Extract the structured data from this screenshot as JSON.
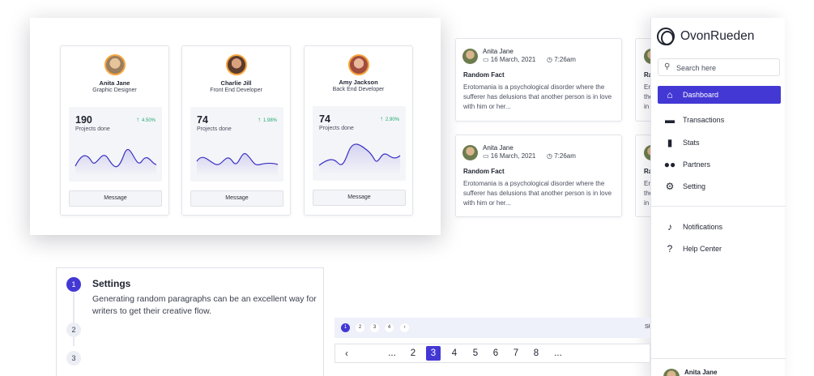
{
  "profiles": [
    {
      "name": "Anita Jane",
      "role": "Graphic Designer",
      "count": "190",
      "count_label": "Projects done",
      "pct": "4.50%",
      "button": "Message",
      "avatar_color": "#c9a27a"
    },
    {
      "name": "Charlie Jill",
      "role": "Front End Developer",
      "count": "74",
      "count_label": "Projects done",
      "pct": "1.98%",
      "button": "Message",
      "avatar_color": "#7a4b3a"
    },
    {
      "name": "Amy Jackson",
      "role": "Back End Developer",
      "count": "74",
      "count_label": "Projects done",
      "pct": "2.90%",
      "button": "Message",
      "avatar_color": "#b7574a"
    }
  ],
  "feed": [
    {
      "author": "Anita Jane",
      "date": "16 March, 2021",
      "time": "7:26am",
      "title": "Random Fact",
      "body": "Erotomania is a psychological disorder where the sufferer has delusions that another person is in love with him or her..."
    },
    {
      "author": "Anita Jane",
      "date": "16 March, 2021",
      "time": "7:26am",
      "title": "Random Fact",
      "body": "Erotomania is a psychological disorder where the sufferer has delusions that another person is in love with him or her..."
    }
  ],
  "feed_partial": [
    {
      "title": "Ra",
      "l1": "Ero",
      "l2": "the",
      "l3": "in"
    },
    {
      "title": "Ra",
      "l1": "Ero",
      "l2": "the",
      "l3": "in"
    }
  ],
  "sidebar": {
    "brand": "OvonRueden",
    "search_placeholder": "Search here",
    "items": [
      {
        "label": "Dashboard",
        "icon": "home-icon"
      },
      {
        "label": "Transactions",
        "icon": "card-icon"
      },
      {
        "label": "Stats",
        "icon": "bar-chart-icon"
      },
      {
        "label": "Partners",
        "icon": "people-icon"
      },
      {
        "label": "Setting",
        "icon": "gear-icon"
      },
      {
        "label": "Notifications",
        "icon": "bell-icon"
      },
      {
        "label": "Help Center",
        "icon": "help-icon"
      }
    ],
    "user_name": "Anita Jane",
    "accent": "#4338d4"
  },
  "stepper": {
    "steps": [
      "1",
      "2",
      "3"
    ],
    "title": "Settings",
    "description": "Generating random paragraphs can be an excellent way for writers to get their creative flow."
  },
  "pager_small": {
    "pages": [
      "1",
      "2",
      "3",
      "4"
    ],
    "next": "›",
    "cut_text": "Sł"
  },
  "pager_big": {
    "prev": "‹",
    "items": [
      "...",
      "2",
      "3",
      "4",
      "5",
      "6",
      "7",
      "8",
      "..."
    ],
    "active": "3"
  }
}
